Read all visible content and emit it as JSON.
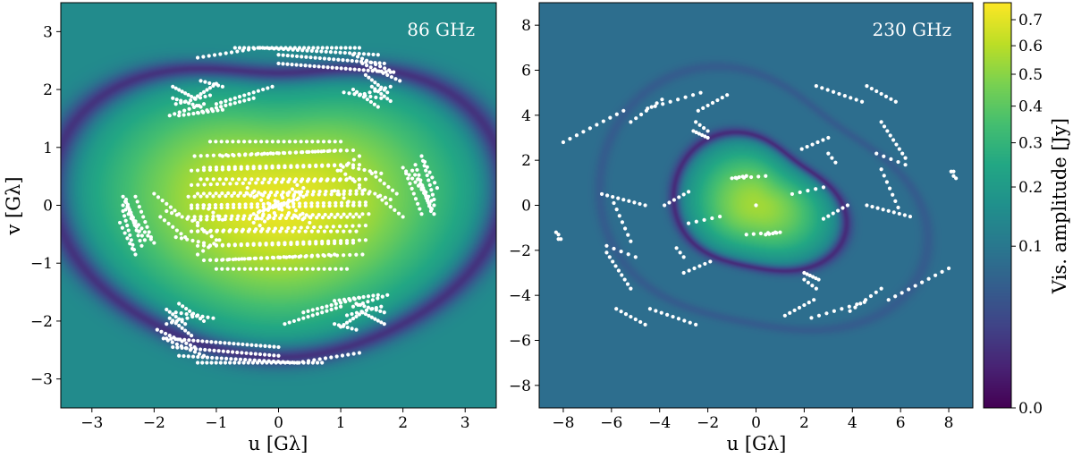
{
  "chart_data": [
    {
      "type": "heatmap",
      "panel_label": "86 GHz",
      "xlabel": "u [Gλ]",
      "ylabel": "v [Gλ]",
      "xlim": [
        -3.5,
        3.5
      ],
      "ylim": [
        -3.5,
        3.5
      ],
      "xticks": [
        -3,
        -2,
        -1,
        0,
        1,
        2,
        3
      ],
      "yticks": [
        -3,
        -2,
        -1,
        0,
        1,
        2,
        3
      ],
      "xtick_labels": [
        "−3",
        "−2",
        "−1",
        "0",
        "1",
        "2",
        "3"
      ],
      "ytick_labels": [
        "−3",
        "−2",
        "−1",
        "0",
        "1",
        "2",
        "3"
      ],
      "field": {
        "peak": 0.72,
        "center": [
          0,
          0
        ],
        "null_ring_radius": 3.0,
        "outer_level": 0.15
      },
      "uv_tracks": [
        {
          "start": [
            -0.7,
            2.72
          ],
          "end": [
            1.3,
            2.72
          ],
          "n": 28
        },
        {
          "start": [
            1.2,
            2.6
          ],
          "end": [
            1.85,
            2.3
          ],
          "n": 10
        },
        {
          "start": [
            1.35,
            2.45
          ],
          "end": [
            1.95,
            2.15
          ],
          "n": 10
        },
        {
          "start": [
            1.4,
            2.25
          ],
          "end": [
            1.75,
            1.95
          ],
          "n": 8
        },
        {
          "start": [
            1.5,
            2.05
          ],
          "end": [
            1.8,
            1.8
          ],
          "n": 7
        },
        {
          "start": [
            -1.7,
            2.05
          ],
          "end": [
            -1.35,
            1.85
          ],
          "n": 8
        },
        {
          "start": [
            -1.35,
            1.85
          ],
          "end": [
            -1.0,
            2.1
          ],
          "n": 8
        },
        {
          "start": [
            -1.7,
            1.85
          ],
          "end": [
            -1.25,
            1.7
          ],
          "n": 8
        },
        {
          "start": [
            -1.65,
            1.75
          ],
          "end": [
            -1.1,
            1.9
          ],
          "n": 8
        },
        {
          "start": [
            -1.25,
            2.15
          ],
          "end": [
            -0.9,
            2.05
          ],
          "n": 6
        },
        {
          "start": [
            -1.1,
            1.1
          ],
          "end": [
            1.0,
            1.1
          ],
          "n": 24
        },
        {
          "start": [
            -1.35,
            0.85
          ],
          "end": [
            1.2,
            0.95
          ],
          "n": 26
        },
        {
          "start": [
            -1.4,
            0.6
          ],
          "end": [
            1.3,
            0.7
          ],
          "n": 28
        },
        {
          "start": [
            -1.4,
            0.35
          ],
          "end": [
            1.4,
            0.45
          ],
          "n": 28
        },
        {
          "start": [
            -1.45,
            0.15
          ],
          "end": [
            1.45,
            0.2
          ],
          "n": 30
        },
        {
          "start": [
            -1.4,
            -0.05
          ],
          "end": [
            1.4,
            0.0
          ],
          "n": 30
        },
        {
          "start": [
            -1.35,
            -0.25
          ],
          "end": [
            1.3,
            -0.2
          ],
          "n": 28
        },
        {
          "start": [
            -1.3,
            -0.45
          ],
          "end": [
            1.25,
            -0.45
          ],
          "n": 26
        },
        {
          "start": [
            -1.1,
            -0.7
          ],
          "end": [
            1.2,
            -0.65
          ],
          "n": 24
        },
        {
          "start": [
            -1.0,
            -0.95
          ],
          "end": [
            0.9,
            -0.85
          ],
          "n": 22
        },
        {
          "start": [
            -0.3,
            -0.1
          ],
          "end": [
            0.4,
            0.15
          ],
          "n": 10
        },
        {
          "start": [
            -0.5,
            0.3
          ],
          "end": [
            0.5,
            -0.2
          ],
          "n": 10
        },
        {
          "start": [
            -0.4,
            -0.3
          ],
          "end": [
            0.3,
            0.35
          ],
          "n": 10
        },
        {
          "start": [
            1.5,
            0.55
          ],
          "end": [
            1.9,
            0.2
          ],
          "n": 7
        },
        {
          "start": [
            1.0,
            0.6
          ],
          "end": [
            1.3,
            0.35
          ],
          "n": 5
        },
        {
          "start": [
            0.9,
            0.25
          ],
          "end": [
            1.2,
            0.0
          ],
          "n": 5
        },
        {
          "start": [
            2.0,
            0.65
          ],
          "end": [
            2.4,
            0.15
          ],
          "n": 9
        },
        {
          "start": [
            2.15,
            0.6
          ],
          "end": [
            2.5,
            0.0
          ],
          "n": 9
        },
        {
          "start": [
            2.25,
            0.45
          ],
          "end": [
            2.5,
            -0.15
          ],
          "n": 8
        },
        {
          "start": [
            2.3,
            0.3
          ],
          "end": [
            2.45,
            -0.05
          ],
          "n": 5
        },
        {
          "start": [
            -2.45,
            0.1
          ],
          "end": [
            -2.2,
            -0.7
          ],
          "n": 10
        },
        {
          "start": [
            -2.5,
            -0.1
          ],
          "end": [
            -2.3,
            -0.85
          ],
          "n": 10
        },
        {
          "start": [
            -2.3,
            0.15
          ],
          "end": [
            -2.05,
            -0.55
          ],
          "n": 9
        },
        {
          "start": [
            -2.55,
            -0.3
          ],
          "end": [
            -2.35,
            -0.75
          ],
          "n": 6
        },
        {
          "start": [
            -2.0,
            0.2
          ],
          "end": [
            -1.6,
            -0.15
          ],
          "n": 7
        },
        {
          "start": [
            -1.8,
            -0.1
          ],
          "end": [
            -1.3,
            -0.3
          ],
          "n": 7
        },
        {
          "start": [
            -1.65,
            -0.55
          ],
          "end": [
            -1.2,
            -0.65
          ],
          "n": 6
        },
        {
          "start": [
            -1.3,
            -0.85
          ],
          "end": [
            -0.95,
            -0.6
          ],
          "n": 5
        },
        {
          "start": [
            -1.6,
            -1.7
          ],
          "end": [
            -1.2,
            -2.0
          ],
          "n": 8
        },
        {
          "start": [
            -1.65,
            -1.85
          ],
          "end": [
            -1.05,
            -1.95
          ],
          "n": 8
        },
        {
          "start": [
            -1.8,
            -2.05
          ],
          "end": [
            -1.3,
            -1.9
          ],
          "n": 7
        },
        {
          "start": [
            0.1,
            -2.05
          ],
          "end": [
            1.0,
            -1.75
          ],
          "n": 13
        },
        {
          "start": [
            0.4,
            -1.85
          ],
          "end": [
            1.3,
            -1.6
          ],
          "n": 13
        },
        {
          "start": [
            0.9,
            -1.65
          ],
          "end": [
            1.6,
            -1.55
          ],
          "n": 10
        },
        {
          "start": [
            1.2,
            -1.75
          ],
          "end": [
            1.75,
            -1.55
          ],
          "n": 8
        },
        {
          "start": [
            -1.8,
            -2.3
          ],
          "end": [
            0.0,
            -2.45
          ],
          "n": 26
        },
        {
          "start": [
            -1.7,
            -2.45
          ],
          "end": [
            0.0,
            -2.6
          ],
          "n": 24
        },
        {
          "start": [
            -1.6,
            -2.6
          ],
          "end": [
            0.3,
            -2.72
          ],
          "n": 26
        },
        {
          "start": [
            0.3,
            -2.72
          ],
          "end": [
            1.3,
            -2.55
          ],
          "n": 12
        }
      ]
    },
    {
      "type": "heatmap",
      "panel_label": "230 GHz",
      "xlabel": "u [Gλ]",
      "ylabel": "",
      "xlim": [
        -9,
        9
      ],
      "ylim": [
        -9,
        9
      ],
      "xticks": [
        -8,
        -6,
        -4,
        -2,
        0,
        2,
        4,
        6,
        8
      ],
      "yticks": [
        -8,
        -6,
        -4,
        -2,
        0,
        2,
        4,
        6,
        8
      ],
      "xtick_labels": [
        "−8",
        "−6",
        "−4",
        "−2",
        "0",
        "2",
        "4",
        "6",
        "8"
      ],
      "ytick_labels": [
        "−8",
        "−6",
        "−4",
        "−2",
        "0",
        "2",
        "4",
        "6",
        "8"
      ],
      "field": {
        "peak": 0.55,
        "center": [
          0,
          0
        ],
        "null_ring_radius": 3.2,
        "outer_level": 0.08
      },
      "uv_tracks": [
        {
          "start": [
            -0.1,
            0.0
          ],
          "end": [
            0.1,
            0.0
          ],
          "n": 1
        },
        {
          "start": [
            -0.8,
            1.2
          ],
          "end": [
            0.4,
            1.3
          ],
          "n": 5
        },
        {
          "start": [
            0.4,
            -1.3
          ],
          "end": [
            1.0,
            -1.2
          ],
          "n": 5
        },
        {
          "start": [
            -2.4,
            4.2
          ],
          "end": [
            -1.2,
            4.9
          ],
          "n": 7
        },
        {
          "start": [
            -2.6,
            3.3
          ],
          "end": [
            -2.0,
            3.0
          ],
          "n": 6
        },
        {
          "start": [
            -5.2,
            3.7
          ],
          "end": [
            -3.9,
            4.7
          ],
          "n": 7
        },
        {
          "start": [
            4.6,
            5.3
          ],
          "end": [
            5.8,
            4.6
          ],
          "n": 7
        },
        {
          "start": [
            5.2,
            3.7
          ],
          "end": [
            6.2,
            2.1
          ],
          "n": 9
        },
        {
          "start": [
            3.0,
            2.3
          ],
          "end": [
            3.3,
            1.9
          ],
          "n": 3
        },
        {
          "start": [
            4.6,
            0.0
          ],
          "end": [
            6.4,
            -0.5
          ],
          "n": 9
        },
        {
          "start": [
            1.5,
            0.5
          ],
          "end": [
            2.8,
            0.8
          ],
          "n": 5
        },
        {
          "start": [
            -3.8,
            0.0
          ],
          "end": [
            -2.8,
            0.6
          ],
          "n": 6
        },
        {
          "start": [
            -5.9,
            0.1
          ],
          "end": [
            -5.2,
            -1.6
          ],
          "n": 7
        },
        {
          "start": [
            -3.0,
            -3.0
          ],
          "end": [
            -1.9,
            -2.5
          ],
          "n": 6
        },
        {
          "start": [
            -4.4,
            -4.6
          ],
          "end": [
            -2.5,
            -5.3
          ],
          "n": 9
        },
        {
          "start": [
            2.0,
            -3.3
          ],
          "end": [
            2.5,
            -3.7
          ],
          "n": 4
        },
        {
          "start": [
            2.3,
            -5.0
          ],
          "end": [
            4.5,
            -4.3
          ],
          "n": 8
        },
        {
          "start": [
            5.5,
            -4.2
          ],
          "end": [
            8.0,
            -2.8
          ],
          "n": 10
        },
        {
          "start": [
            8.1,
            1.5
          ],
          "end": [
            8.2,
            1.3
          ],
          "n": 2
        },
        {
          "start": [
            -8.3,
            -1.2
          ],
          "end": [
            -8.2,
            -1.5
          ],
          "n": 2
        },
        {
          "start": [
            -6.2,
            -1.8
          ],
          "end": [
            -5.0,
            -2.3
          ],
          "n": 5
        }
      ]
    }
  ],
  "colorbar": {
    "label": "Vis. amplitude [Jy]",
    "ticks": [
      0.0,
      0.1,
      0.2,
      0.3,
      0.4,
      0.5,
      0.6,
      0.7
    ],
    "tick_labels": [
      "0.0",
      "0.1",
      "0.2",
      "0.3",
      "0.4",
      "0.5",
      "0.6",
      "0.7"
    ],
    "scale": "power",
    "range": [
      0.0,
      0.77
    ],
    "colormap": "viridis"
  },
  "colors": {
    "track_points": "#ffffff",
    "text_on_plot": "#ffffff"
  }
}
